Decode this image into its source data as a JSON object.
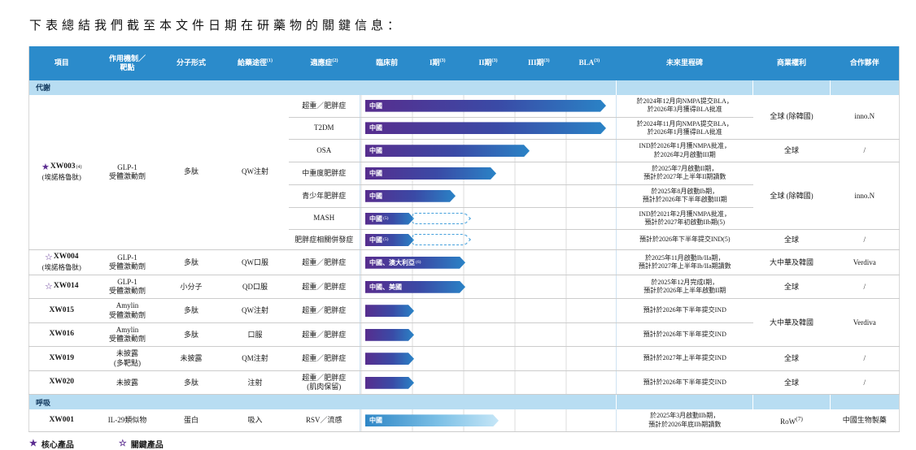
{
  "title": "下表總結我們截至本文件日期在研藥物的關鍵信息：",
  "header": {
    "project": "項目",
    "mechanism": "作用機制／\n靶點",
    "molecular": "分子形式",
    "route": "給藥途徑",
    "route_sup": "(1)",
    "indication": "適應症",
    "indication_sup": "(2)",
    "phases": [
      {
        "label": "臨床前",
        "sup": ""
      },
      {
        "label": "I期",
        "sup": "(3)"
      },
      {
        "label": "II期",
        "sup": "(3)"
      },
      {
        "label": "III期",
        "sup": "(3)"
      },
      {
        "label": "BLA",
        "sup": "(3)"
      }
    ],
    "milestone": "未來里程碑",
    "rights": "商業權利",
    "partner": "合作夥伴"
  },
  "sections": {
    "metabolic": "代謝",
    "respiratory": "呼吸"
  },
  "xw003": {
    "star": "★",
    "id": "XW003",
    "id_sup": "(4)",
    "subname": "(埃諾格魯肽)",
    "mechanism": "GLP-1\n受體激動劑",
    "molecular": "多肽",
    "route": "QW注射",
    "rows": [
      {
        "indication": "超重／肥胖症",
        "bar": {
          "label": "中國",
          "end": 0.96
        },
        "milestone": "於2024年12月向NMPA提交BLA，\n於2026年3月獲得BLA批准"
      },
      {
        "indication": "T2DM",
        "bar": {
          "label": "中國",
          "end": 0.96
        },
        "milestone": "於2024年11月向NMPA提交BLA，\n於2026年1月獲得BLA批准"
      },
      {
        "indication": "OSA",
        "bar": {
          "label": "中國",
          "end": 0.66
        },
        "milestone": "IND於2026年1月獲NMPA批准，\n於2026年2月啟動III期"
      },
      {
        "indication": "中重度肥胖症",
        "bar": {
          "label": "中國",
          "end": 0.53
        },
        "milestone": "於2025年7月啟動II期，\n預計於2027年上半年II期讀數"
      },
      {
        "indication": "青少年肥胖症",
        "bar": {
          "label": "中國",
          "end": 0.37
        },
        "milestone": "於2025年8月啟動Ib期，\n預計於2026年下半年啟動III期"
      },
      {
        "indication": "MASH",
        "bar": {
          "label": "中國",
          "sup": "(5)",
          "end": 0.21,
          "dashed_end": 0.44
        },
        "milestone": "IND於2021年2月獲NMPA批准，\n預計於2027年初啟動IIb期(5)"
      },
      {
        "indication": "肥胖症相關併發症",
        "bar": {
          "label": "中國",
          "sup": "(5)",
          "end": 0.21,
          "dashed_end": 0.44
        },
        "milestone": "預計於2026年下半年提交IND(5)"
      }
    ],
    "rights_a": "全球 (除韓國)",
    "partner_a": "inno.N",
    "rights_b": "全球",
    "partner_b": "/",
    "rights_c": "全球 (除韓國)",
    "partner_c": "inno.N",
    "rights_d": "全球",
    "partner_d": "/"
  },
  "xw004": {
    "star": "☆",
    "id": "XW004",
    "subname": "(埃諾格魯肽)",
    "mechanism": "GLP-1\n受體激動劑",
    "molecular": "多肽",
    "route": "QW口服",
    "indication": "超重／肥胖症",
    "bar": {
      "label": "中國、澳大利亞",
      "sup": "(6)",
      "end": 0.41
    },
    "milestone": "於2025年11月啟動Ib/IIa期，\n預計於2027年上半年Ib/IIa期讀數",
    "rights": "大中華及韓國",
    "partner": "Verdiva"
  },
  "xw014": {
    "star": "☆",
    "id": "XW014",
    "mechanism": "GLP-1\n受體激動劑",
    "molecular": "小分子",
    "route": "QD口服",
    "indication": "超重／肥胖症",
    "bar": {
      "label": "中國、美國",
      "end": 0.41
    },
    "milestone": "於2025年12月完成I期，\n預計於2026年上半年啟動II期",
    "rights": "全球",
    "partner": "/"
  },
  "xw015": {
    "id": "XW015",
    "mechanism": "Amylin\n受體激動劑",
    "molecular": "多肽",
    "route": "QW注射",
    "indication": "超重／肥胖症",
    "bar": {
      "end": 0.21
    },
    "milestone": "預計於2026年下半年提交IND"
  },
  "xw016": {
    "id": "XW016",
    "mechanism": "Amylin\n受體激動劑",
    "molecular": "多肽",
    "route": "口服",
    "indication": "超重／肥胖症",
    "bar": {
      "end": 0.21
    },
    "milestone": "預計於2026年下半年提交IND"
  },
  "rights_1516": "大中華及韓國",
  "partner_1516": "Verdiva",
  "xw019": {
    "id": "XW019",
    "mechanism": "未披露\n(多靶點)",
    "molecular": "未披露",
    "route": "QM注射",
    "indication": "超重／肥胖症",
    "bar": {
      "end": 0.21
    },
    "milestone": "預計於2027年上半年提交IND",
    "rights": "全球",
    "partner": "/"
  },
  "xw020": {
    "id": "XW020",
    "mechanism": "未披露",
    "molecular": "多肽",
    "route": "注射",
    "indication": "超重／肥胖症\n(肌肉保留)",
    "bar": {
      "end": 0.21
    },
    "milestone": "預計於2026年下半年提交IND",
    "rights": "全球",
    "partner": "/"
  },
  "xw001": {
    "id": "XW001",
    "mechanism": "IL-29類似物",
    "molecular": "蛋白",
    "route": "吸入",
    "indication": "RSV／流感",
    "bar": {
      "label": "中國",
      "end": 0.54,
      "variant": "light"
    },
    "milestone": "於2025年3月啟動IIb期，\n預計於2026年底IIb期讀數",
    "rights": "RoW",
    "rights_sup": "(7)",
    "partner": "中國生物製藥"
  },
  "legend": [
    {
      "icon": "★",
      "label": "核心產品"
    },
    {
      "icon": "☆",
      "label": "關鍵產品"
    }
  ],
  "colors": {
    "header_blue": "#2b8bcb",
    "section_blue": "#b8ddf2",
    "bar_purple": "#572d8e",
    "bar_blue": "#2a83c6",
    "bar_light_end": "#c6e6f7",
    "star_purple": "#5b2d90"
  }
}
